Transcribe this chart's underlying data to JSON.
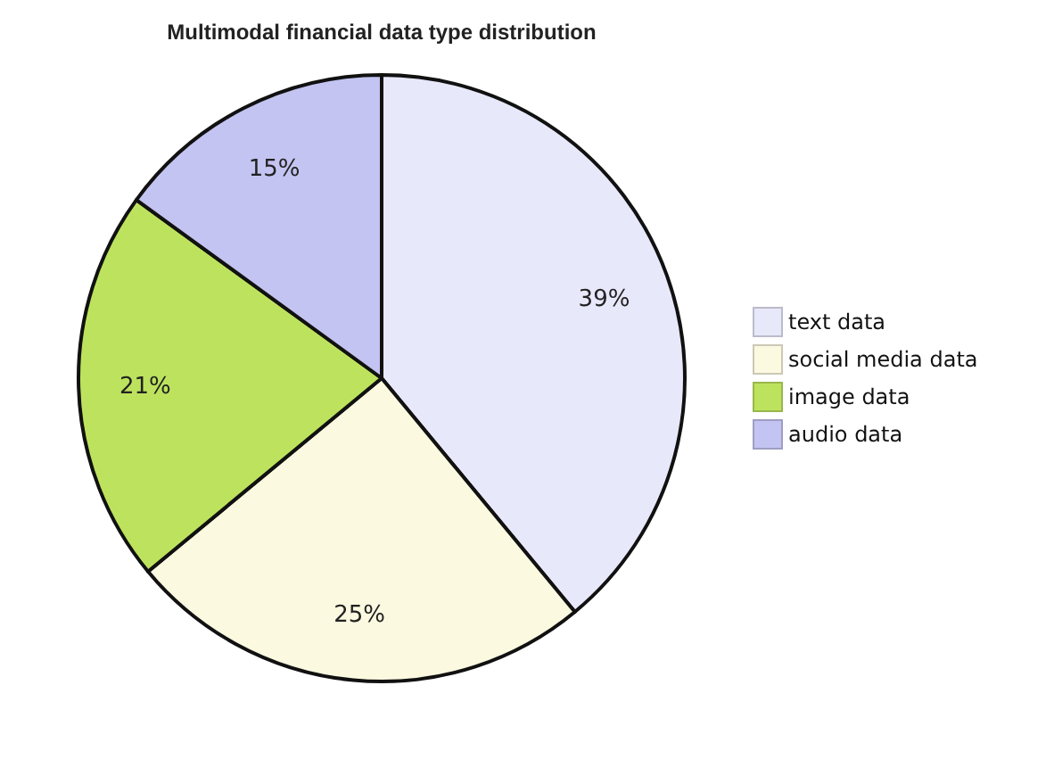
{
  "chart_data": {
    "type": "pie",
    "title": "Multimodal financial data type distribution",
    "categories": [
      "text data",
      "social media data",
      "image data",
      "audio data"
    ],
    "values": [
      39,
      25,
      21,
      15
    ],
    "value_labels": [
      "39%",
      "25%",
      "21%",
      "15%"
    ],
    "colors": [
      "#e8e8fb",
      "#fbf9e0",
      "#bde35e",
      "#c4c4f2"
    ],
    "legend": "right"
  }
}
